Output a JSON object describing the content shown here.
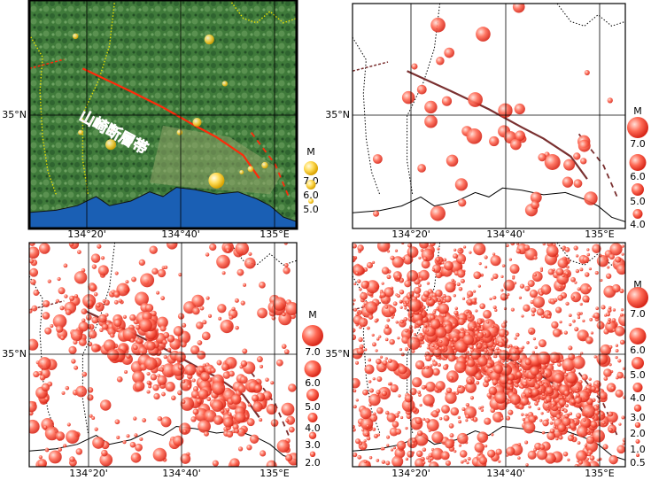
{
  "fault_label": "山崎断層帯",
  "panels": [
    {
      "lat_label": "35°N",
      "lon_labels": [
        "134°20'",
        "134°40'",
        "135°E"
      ],
      "legend": {
        "title": "M",
        "labels": [
          "7.0",
          "6.0",
          "5.0"
        ]
      }
    },
    {
      "lat_label": "35°N",
      "lon_labels": [
        "134°20'",
        "134°40'",
        "135°E"
      ],
      "legend": {
        "title": "M",
        "labels": [
          "7.0",
          "6.0",
          "5.0",
          "4.0"
        ]
      }
    },
    {
      "lat_label": "35°N",
      "lon_labels": [
        "134°20'",
        "134°40'",
        "135°E"
      ],
      "legend": {
        "title": "M",
        "labels": [
          "7.0",
          "6.0",
          "5.0",
          "4.0",
          "3.0",
          "2.0"
        ]
      }
    },
    {
      "lat_label": "35°N",
      "lon_labels": [
        "134°20'",
        "134°40'",
        "135°E"
      ],
      "legend": {
        "title": "M",
        "labels": [
          "7.0",
          "6.0",
          "5.0",
          "4.0",
          "3.0",
          "2.0",
          "1.0",
          "0.5"
        ]
      }
    }
  ]
}
